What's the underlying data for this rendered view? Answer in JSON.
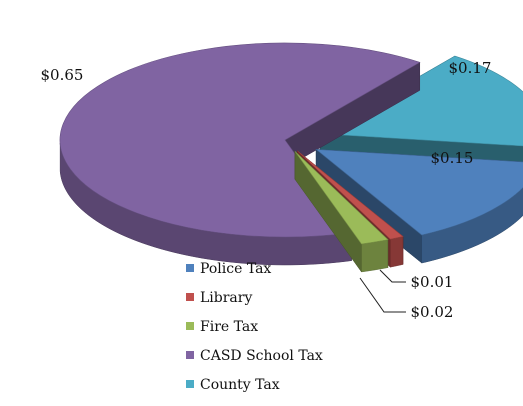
{
  "chart_data": {
    "type": "pie",
    "style": "3d-exploded",
    "title": "",
    "categories": [
      "Police Tax",
      "Library",
      "Fire Tax",
      "CASD School Tax",
      "County Tax"
    ],
    "values": [
      0.15,
      0.01,
      0.02,
      0.65,
      0.17
    ],
    "data_labels": [
      "$0.15",
      "$0.01",
      "$0.02",
      "$0.65",
      "$0.17"
    ],
    "colors": [
      "#4F81BD",
      "#C0504D",
      "#9BBB59",
      "#8064A2",
      "#4BACC6"
    ],
    "legend_position": "bottom"
  }
}
